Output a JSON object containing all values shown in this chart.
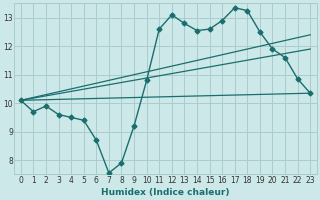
{
  "xlabel": "Humidex (Indice chaleur)",
  "bg_color": "#cde8e8",
  "grid_color": "#aacccc",
  "line_color": "#1a6e6e",
  "xlim": [
    -0.5,
    23.5
  ],
  "ylim": [
    7.5,
    13.5
  ],
  "xticks": [
    0,
    1,
    2,
    3,
    4,
    5,
    6,
    7,
    8,
    9,
    10,
    11,
    12,
    13,
    14,
    15,
    16,
    17,
    18,
    19,
    20,
    21,
    22,
    23
  ],
  "yticks": [
    8,
    9,
    10,
    11,
    12,
    13
  ],
  "main_curve": {
    "x": [
      0,
      1,
      2,
      3,
      4,
      5,
      6,
      7,
      8,
      9,
      10,
      11,
      12,
      13,
      14,
      15,
      16,
      17,
      18,
      19,
      20,
      21,
      22,
      23
    ],
    "y": [
      10.1,
      9.7,
      9.9,
      9.6,
      9.5,
      9.4,
      8.7,
      7.55,
      7.9,
      9.2,
      10.8,
      12.6,
      13.1,
      12.8,
      12.55,
      12.6,
      12.9,
      13.35,
      13.25,
      12.5,
      11.9,
      11.6,
      10.85,
      10.35
    ]
  },
  "straight_lines": [
    {
      "x0": 0,
      "y0": 10.1,
      "x1": 23,
      "y1": 10.35
    },
    {
      "x0": 0,
      "y0": 10.1,
      "x1": 23,
      "y1": 12.4
    },
    {
      "x0": 0,
      "y0": 10.1,
      "x1": 23,
      "y1": 11.9
    }
  ]
}
